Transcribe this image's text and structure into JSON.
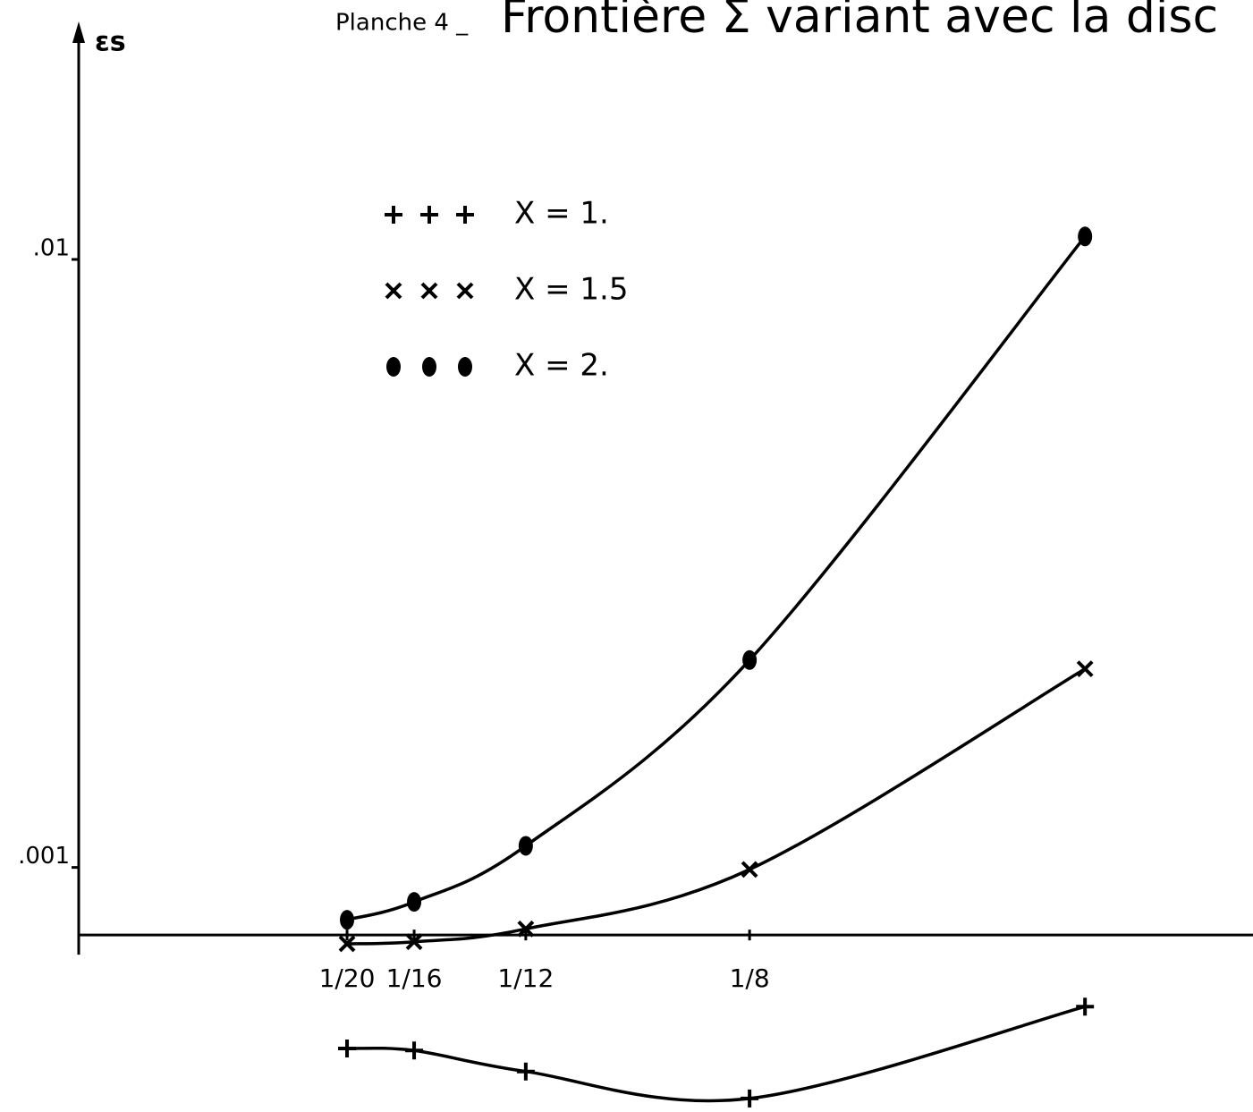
{
  "chart_data": {
    "type": "line",
    "plate": "Planche 4 _",
    "title": "Frontière Σ variant avec la disc",
    "ylabel": "εs",
    "xlim": [
      0,
      0.2188
    ],
    "ylim": [
      -0.00262,
      0.01384
    ],
    "xticks": [
      {
        "value": 0.05,
        "label": "1/20"
      },
      {
        "value": 0.0625,
        "label": "1/16"
      },
      {
        "value": 0.0833,
        "label": "1/12"
      },
      {
        "value": 0.125,
        "label": "1/8"
      }
    ],
    "yticks": [
      {
        "value": 0.001,
        "label": ".001"
      },
      {
        "value": 0.01,
        "label": ".01"
      }
    ],
    "x": [
      0.05,
      0.0625,
      0.0833,
      0.125,
      0.1875
    ],
    "series": [
      {
        "name": "X = 1.",
        "marker": "plus",
        "color": "#000000",
        "values": [
          -0.00168,
          -0.00171,
          -0.00202,
          -0.00242,
          -0.00106
        ]
      },
      {
        "name": "X = 1.5",
        "marker": "cross",
        "color": "#000000",
        "values": [
          -0.00013,
          -0.0001,
          9e-05,
          0.00097,
          0.00394
        ]
      },
      {
        "name": "X = 2.",
        "marker": "dot",
        "color": "#000000",
        "values": [
          0.000225,
          0.00049,
          0.00132,
          0.00407,
          0.01034
        ]
      }
    ]
  }
}
